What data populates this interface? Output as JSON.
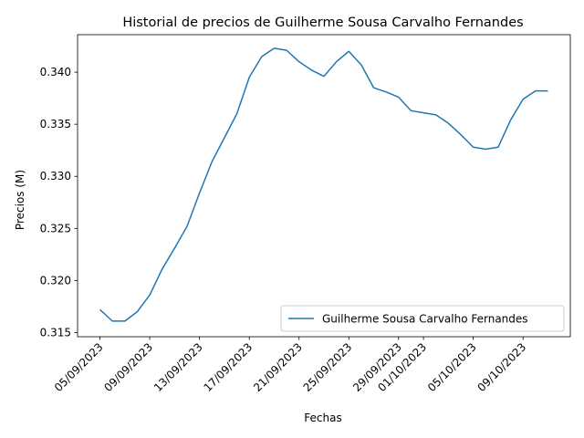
{
  "chart_data": {
    "type": "line",
    "title": "Historial de precios de Guilherme Sousa Carvalho Fernandes",
    "xlabel": "Fechas",
    "ylabel": "Precios (M)",
    "ylim": [
      0.3146,
      0.3436
    ],
    "yticks": [
      0.315,
      0.32,
      0.325,
      0.33,
      0.335,
      0.34
    ],
    "ytick_labels": [
      "0.315",
      "0.320",
      "0.325",
      "0.330",
      "0.335",
      "0.340"
    ],
    "xticks": [
      "05/09/2023",
      "09/09/2023",
      "13/09/2023",
      "17/09/2023",
      "21/09/2023",
      "25/09/2023",
      "29/09/2023",
      "01/10/2023",
      "05/10/2023",
      "09/10/2023"
    ],
    "legend_position": "lower-right",
    "grid": false,
    "color": "#1f77b4",
    "series": [
      {
        "name": "Guilherme Sousa Carvalho Fernandes",
        "x": [
          "05/09/2023",
          "06/09/2023",
          "07/09/2023",
          "08/09/2023",
          "09/09/2023",
          "10/09/2023",
          "11/09/2023",
          "12/09/2023",
          "13/09/2023",
          "14/09/2023",
          "15/09/2023",
          "16/09/2023",
          "17/09/2023",
          "18/09/2023",
          "19/09/2023",
          "20/09/2023",
          "21/09/2023",
          "22/09/2023",
          "23/09/2023",
          "24/09/2023",
          "25/09/2023",
          "26/09/2023",
          "27/09/2023",
          "28/09/2023",
          "29/09/2023",
          "30/09/2023",
          "01/10/2023",
          "02/10/2023",
          "03/10/2023",
          "04/10/2023",
          "05/10/2023",
          "06/10/2023",
          "07/10/2023",
          "08/10/2023",
          "09/10/2023",
          "10/10/2023",
          "11/10/2023"
        ],
        "values": [
          0.3172,
          0.3161,
          0.3161,
          0.317,
          0.3186,
          0.3211,
          0.3231,
          0.3252,
          0.3284,
          0.3314,
          0.3337,
          0.336,
          0.3395,
          0.3415,
          0.3423,
          0.3421,
          0.341,
          0.3402,
          0.3396,
          0.341,
          0.342,
          0.3407,
          0.3385,
          0.3381,
          0.3376,
          0.3363,
          0.3361,
          0.3359,
          0.3351,
          0.334,
          0.3328,
          0.3326,
          0.3328,
          0.3354,
          0.3374,
          0.3382,
          0.3382
        ]
      }
    ]
  }
}
